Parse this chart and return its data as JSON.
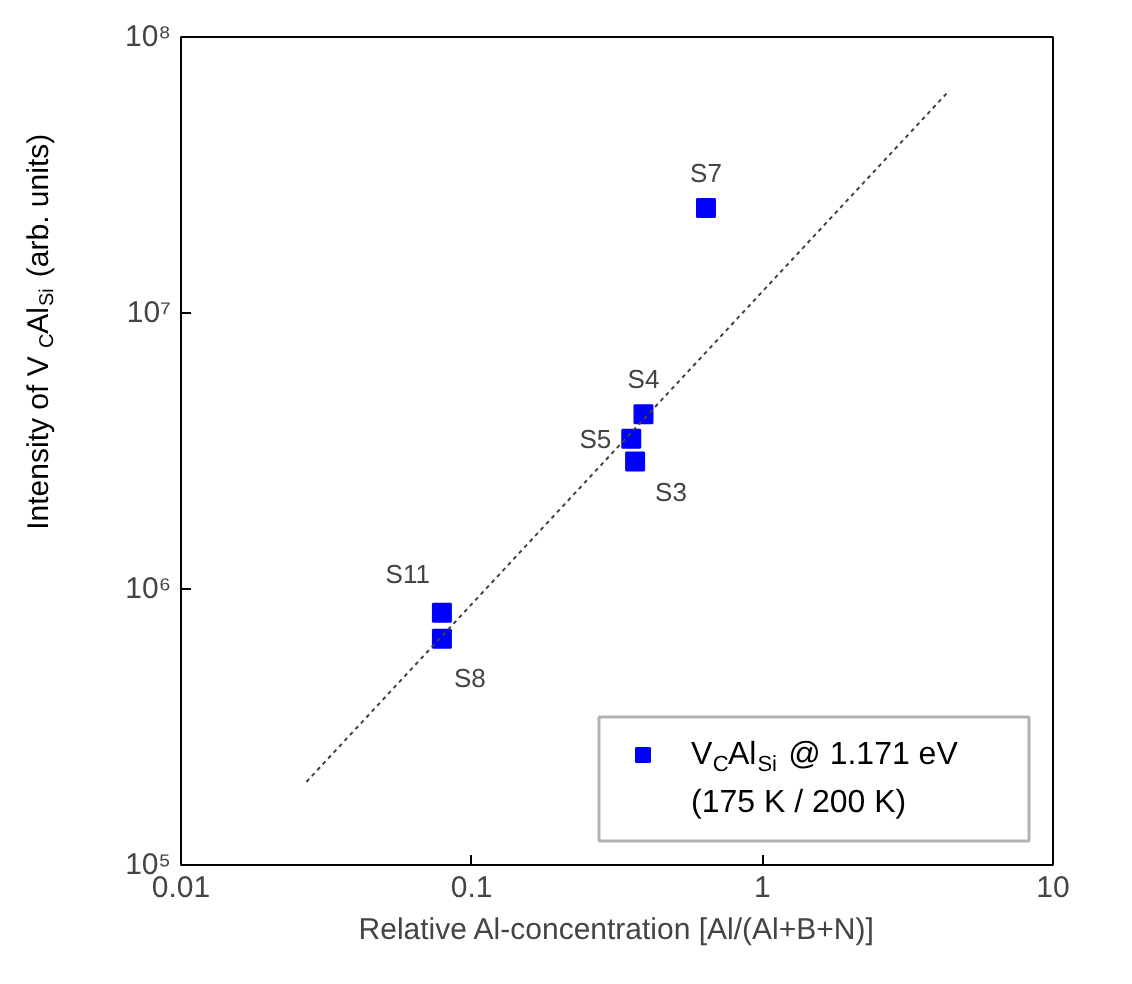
{
  "chart_data": {
    "type": "scatter",
    "xlabel": "Relative Al-concentration [Al/(Al+B+N)]",
    "ylabel": "Intensity of V$_{C}$Al$_{Si}$ (arb. units)",
    "log": "xy",
    "xlim": [
      0.01,
      10
    ],
    "ylim": [
      100000,
      100000000
    ],
    "xticks": [
      0.01,
      0.1,
      1,
      10
    ],
    "yticks": [
      {
        "value": 100000,
        "label": "10⁵"
      },
      {
        "value": 1000000,
        "label": "10⁶"
      },
      {
        "value": 10000000,
        "label": "10⁷"
      },
      {
        "value": 100000000,
        "label": "10⁸"
      }
    ],
    "grid": false,
    "legend": "bottom right",
    "series": [
      {
        "name": "V$_{C}$Al$_{Si}$ @ 1.171 eV\n(175 K / 200 K)",
        "color": "#0000ff",
        "marker": "square",
        "x": [
          0.64,
          0.39,
          0.354,
          0.365,
          0.079,
          0.079
        ],
        "values": [
          24000000,
          4300000,
          3500000,
          2900000,
          820000,
          660000
        ]
      },
      {
        "type": "line",
        "color": "#404040",
        "line_style": "dotted",
        "x": [
          0.027,
          4.4
        ],
        "values": [
          200000,
          64000000
        ]
      }
    ],
    "annotations": [
      {
        "text": "S7",
        "x": 0.64,
        "y": 24000000
      },
      {
        "text": "S4",
        "x": 0.39,
        "y": 4300000
      },
      {
        "text": "S5",
        "x": 0.354,
        "y": 3500000
      },
      {
        "text": "S3",
        "x": 0.365,
        "y": 2900000
      },
      {
        "text": "S11",
        "x": 0.079,
        "y": 820000
      },
      {
        "text": "S8",
        "x": 0.079,
        "y": 660000
      }
    ]
  }
}
